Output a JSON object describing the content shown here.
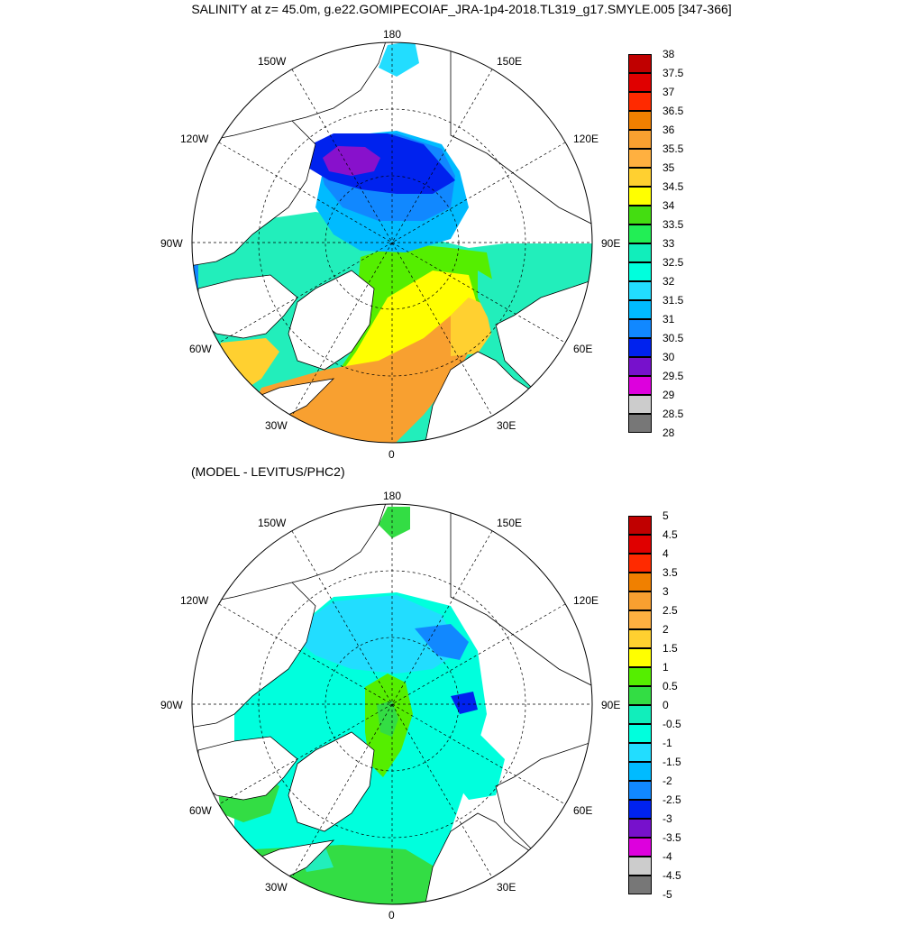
{
  "title": "SALINITY at z=  45.0m, g.e22.GOMIPECOIAF_JRA-1p4-2018.TL319_g17.SMYLE.005 [347-366]",
  "subtitle": "(MODEL - LEVITUS/PHC2)",
  "longitude_labels": {
    "top": "180",
    "bottom": "0",
    "left": "90W",
    "right": "90E",
    "upper_left_1": "150W",
    "upper_left_2": "120W",
    "lower_left_1": "60W",
    "lower_left_2": "30W",
    "upper_right_1": "150E",
    "upper_right_2": "120E",
    "lower_right_1": "60E",
    "lower_right_2": "30E"
  },
  "colorbar_top": {
    "labels": [
      "38",
      "37.5",
      "37",
      "36.5",
      "36",
      "35.5",
      "35",
      "34.5",
      "34",
      "33.5",
      "33",
      "32.5",
      "32",
      "31.5",
      "31",
      "30.5",
      "30",
      "29.5",
      "29",
      "28.5",
      "28"
    ],
    "colors": [
      "#c00000",
      "#e00000",
      "#ff2a00",
      "#f08000",
      "#f8a030",
      "#ffb040",
      "#ffd030",
      "#ffff00",
      "#44dd11",
      "#22ee55",
      "#11eebb",
      "#00ffdd",
      "#22ddff",
      "#00bbff",
      "#1188ff",
      "#0022ee",
      "#7711cc",
      "#dd00dd",
      "#cccccc",
      "#777777"
    ]
  },
  "colorbar_bottom": {
    "labels": [
      "5",
      "4.5",
      "4",
      "3.5",
      "3",
      "2.5",
      "2",
      "1.5",
      "1",
      "0.5",
      "0",
      "-0.5",
      "-1",
      "-1.5",
      "-2",
      "-2.5",
      "-3",
      "-3.5",
      "-4",
      "-4.5",
      "-5"
    ],
    "colors": [
      "#c00000",
      "#e00000",
      "#ff2a00",
      "#f08000",
      "#f8a030",
      "#ffb040",
      "#ffd030",
      "#ffff00",
      "#55ee00",
      "#33dd44",
      "#11eebb",
      "#00ffdd",
      "#22ddff",
      "#00bbff",
      "#1188ff",
      "#0022ee",
      "#7711cc",
      "#dd00dd",
      "#cccccc",
      "#777777"
    ]
  }
}
